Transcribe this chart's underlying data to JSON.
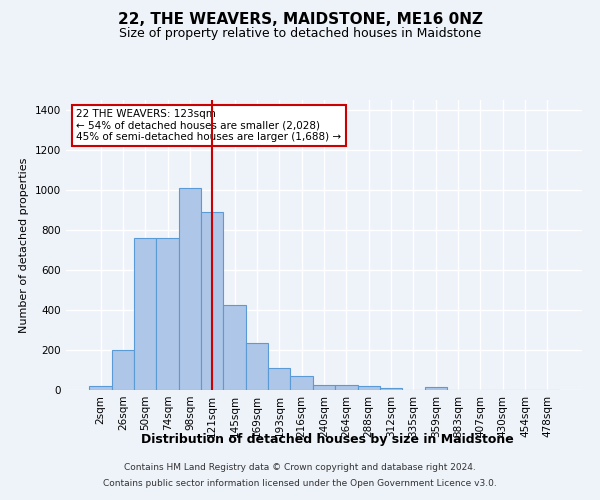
{
  "title": "22, THE WEAVERS, MAIDSTONE, ME16 0NZ",
  "subtitle": "Size of property relative to detached houses in Maidstone",
  "xlabel": "Distribution of detached houses by size in Maidstone",
  "ylabel": "Number of detached properties",
  "footer_line1": "Contains HM Land Registry data © Crown copyright and database right 2024.",
  "footer_line2": "Contains public sector information licensed under the Open Government Licence v3.0.",
  "categories": [
    "2sqm",
    "26sqm",
    "50sqm",
    "74sqm",
    "98sqm",
    "121sqm",
    "145sqm",
    "169sqm",
    "193sqm",
    "216sqm",
    "240sqm",
    "264sqm",
    "288sqm",
    "312sqm",
    "335sqm",
    "359sqm",
    "383sqm",
    "407sqm",
    "430sqm",
    "454sqm",
    "478sqm"
  ],
  "values": [
    20,
    200,
    760,
    760,
    1010,
    890,
    425,
    235,
    110,
    70,
    25,
    25,
    20,
    10,
    0,
    15,
    0,
    0,
    0,
    0,
    0
  ],
  "bar_color": "#aec6e8",
  "bar_edge_color": "#5b9bd5",
  "vline_x": 5,
  "vline_color": "#cc0000",
  "annotation_title": "22 THE WEAVERS: 123sqm",
  "annotation_line1": "← 54% of detached houses are smaller (2,028)",
  "annotation_line2": "45% of semi-detached houses are larger (1,688) →",
  "annotation_box_color": "#cc0000",
  "ylim": [
    0,
    1450
  ],
  "yticks": [
    0,
    200,
    400,
    600,
    800,
    1000,
    1200,
    1400
  ],
  "background_color": "#eef2f9",
  "grid_color": "#ffffff",
  "title_fontsize": 11,
  "subtitle_fontsize": 9,
  "ylabel_fontsize": 8,
  "xlabel_fontsize": 9,
  "tick_fontsize": 7.5,
  "footer_fontsize": 6.5
}
